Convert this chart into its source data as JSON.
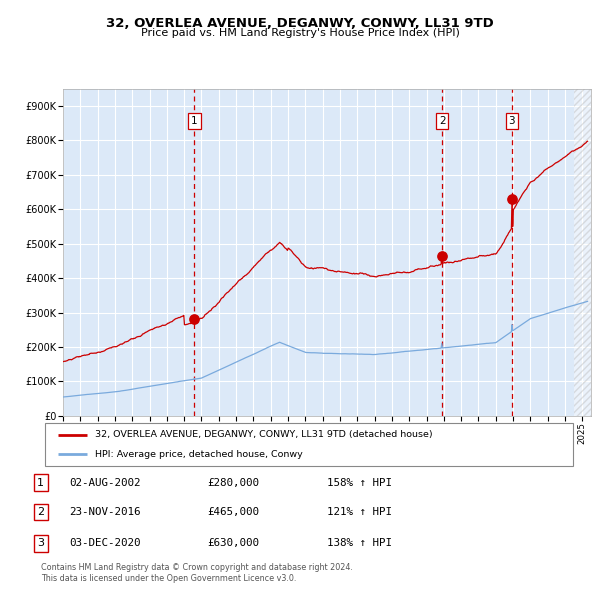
{
  "title": "32, OVERLEA AVENUE, DEGANWY, CONWY, LL31 9TD",
  "subtitle": "Price paid vs. HM Land Registry's House Price Index (HPI)",
  "legend_house": "32, OVERLEA AVENUE, DEGANWY, CONWY, LL31 9TD (detached house)",
  "legend_hpi": "HPI: Average price, detached house, Conwy",
  "sale_labels": [
    "1",
    "2",
    "3"
  ],
  "sale_dates_label": [
    "02-AUG-2002",
    "23-NOV-2016",
    "03-DEC-2020"
  ],
  "sale_prices_label": [
    "£280,000",
    "£465,000",
    "£630,000"
  ],
  "sale_hpi_label": [
    "158% ↑ HPI",
    "121% ↑ HPI",
    "138% ↑ HPI"
  ],
  "sale_years": [
    2002.585,
    2016.899,
    2020.922
  ],
  "sale_prices": [
    280000,
    465000,
    630000
  ],
  "hpi_sale_values": [
    108695,
    210407,
    264706
  ],
  "footer_line1": "Contains HM Land Registry data © Crown copyright and database right 2024.",
  "footer_line2": "This data is licensed under the Open Government Licence v3.0.",
  "bg_color": "#dce9f8",
  "grid_color": "#ffffff",
  "house_line_color": "#cc0000",
  "hpi_line_color": "#7aaadd",
  "sale_dot_color": "#cc0000",
  "vline_color": "#cc0000",
  "ylim": [
    0,
    950000
  ],
  "xlim_start": 1995.0,
  "xlim_end": 2025.5,
  "yticks": [
    0,
    100000,
    200000,
    300000,
    400000,
    500000,
    600000,
    700000,
    800000,
    900000
  ],
  "ytick_labels": [
    "£0",
    "£100K",
    "£200K",
    "£300K",
    "£400K",
    "£500K",
    "£600K",
    "£700K",
    "£800K",
    "£900K"
  ]
}
